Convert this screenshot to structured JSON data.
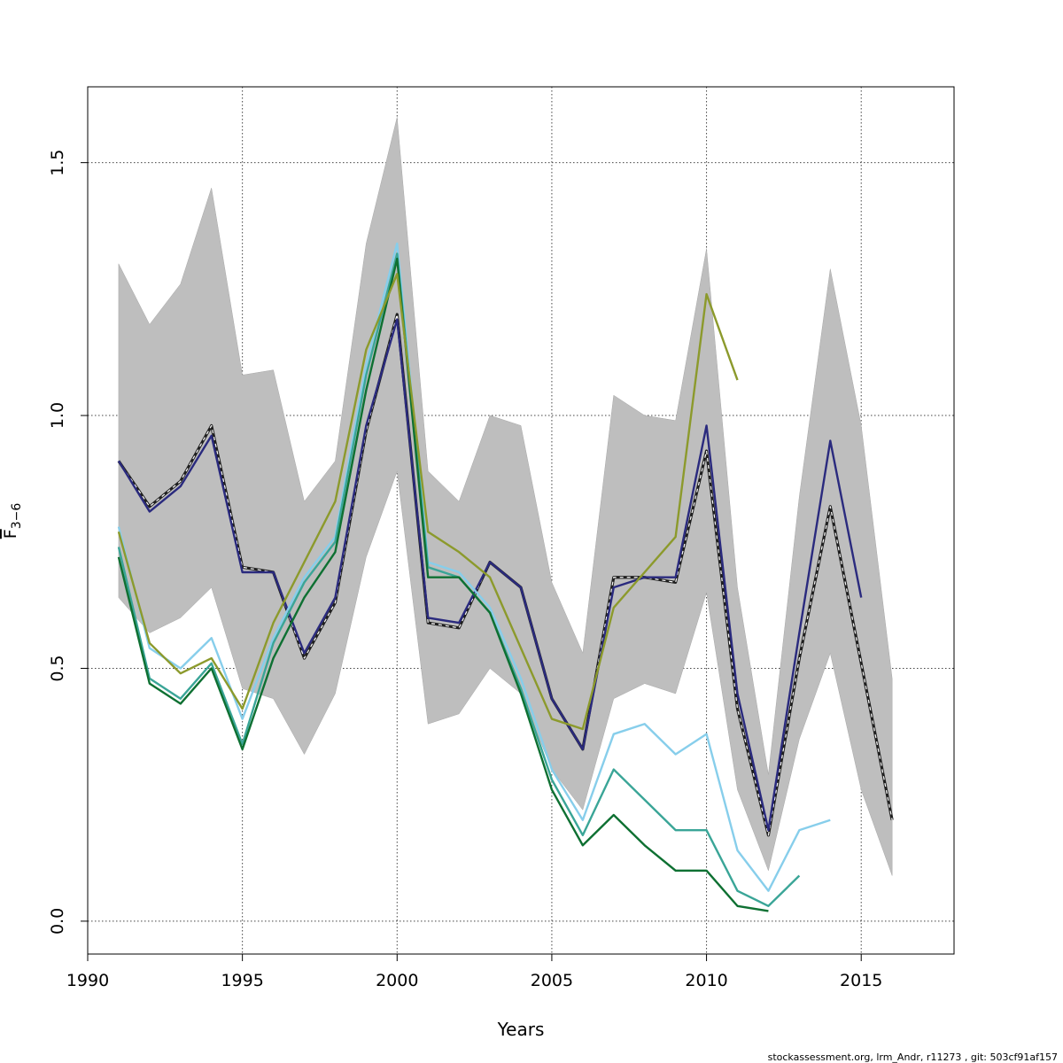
{
  "chart_data": {
    "type": "line",
    "title": "",
    "xlabel": "Years",
    "ylabel": {
      "main": "F",
      "subscript": "3−6"
    },
    "footer": "stockassessment.org, lrm_Andr, r11273 , git: 503cf91af157",
    "xlim": [
      1990,
      2018
    ],
    "ylim": [
      -0.065,
      1.65
    ],
    "x_ticks": [
      1990,
      1995,
      2000,
      2005,
      2010,
      2015
    ],
    "x_tick_labels": [
      "1990",
      "1995",
      "2000",
      "2005",
      "2010",
      "2015"
    ],
    "y_ticks": [
      0,
      0.5,
      1,
      1.5
    ],
    "y_tick_labels": [
      "0.0",
      "0.5",
      "1.0",
      "1.5"
    ],
    "grid": true,
    "confidence_band": {
      "x": [
        1991,
        1992,
        1993,
        1994,
        1995,
        1996,
        1997,
        1998,
        1999,
        2000,
        2001,
        2002,
        2003,
        2004,
        2005,
        2006,
        2007,
        2008,
        2009,
        2010,
        2011,
        2012,
        2013,
        2014,
        2015,
        2016
      ],
      "upper": [
        1.3,
        1.18,
        1.26,
        1.45,
        1.08,
        1.09,
        0.83,
        0.91,
        1.34,
        1.59,
        0.89,
        0.83,
        1.0,
        0.98,
        0.67,
        0.53,
        1.04,
        1.0,
        0.99,
        1.33,
        0.66,
        0.29,
        0.84,
        1.29,
        0.98,
        0.48
      ],
      "lower": [
        0.64,
        0.57,
        0.6,
        0.66,
        0.46,
        0.44,
        0.33,
        0.45,
        0.72,
        0.89,
        0.39,
        0.41,
        0.5,
        0.45,
        0.3,
        0.22,
        0.44,
        0.47,
        0.45,
        0.65,
        0.26,
        0.1,
        0.36,
        0.53,
        0.26,
        0.09
      ],
      "color": "#bebebe"
    },
    "series": [
      {
        "color": "#1f1f1f",
        "dashed": true,
        "x": [
          1991,
          1992,
          1993,
          1994,
          1995,
          1996,
          1997,
          1998,
          1999,
          2000,
          2001,
          2002,
          2003,
          2004,
          2005,
          2006,
          2007,
          2008,
          2009,
          2010,
          2011,
          2012,
          2013,
          2014,
          2015,
          2016
        ],
        "values": [
          0.91,
          0.82,
          0.87,
          0.98,
          0.7,
          0.69,
          0.52,
          0.63,
          0.97,
          1.2,
          0.59,
          0.58,
          0.71,
          0.66,
          0.44,
          0.34,
          0.68,
          0.68,
          0.67,
          0.93,
          0.42,
          0.17,
          0.52,
          0.82,
          0.51,
          0.2
        ]
      },
      {
        "color": "#2a2a7e",
        "dashed": false,
        "x": [
          1991,
          1992,
          1993,
          1994,
          1995,
          1996,
          1997,
          1998,
          1999,
          2000,
          2001,
          2002,
          2003,
          2004,
          2005,
          2006,
          2007,
          2008,
          2009,
          2010,
          2011,
          2012,
          2013,
          2014,
          2015
        ],
        "values": [
          0.91,
          0.81,
          0.86,
          0.96,
          0.69,
          0.69,
          0.53,
          0.64,
          0.98,
          1.19,
          0.6,
          0.59,
          0.71,
          0.66,
          0.44,
          0.34,
          0.66,
          0.68,
          0.68,
          0.98,
          0.45,
          0.18,
          0.57,
          0.95,
          0.64
        ]
      },
      {
        "color": "#87ceeb",
        "dashed": false,
        "x": [
          1991,
          1992,
          1993,
          1994,
          1995,
          1996,
          1997,
          1998,
          1999,
          2000,
          2001,
          2002,
          2003,
          2004,
          2005,
          2006,
          2007,
          2008,
          2009,
          2010,
          2011,
          2012,
          2013,
          2014
        ],
        "values": [
          0.78,
          0.54,
          0.5,
          0.56,
          0.4,
          0.56,
          0.68,
          0.76,
          1.1,
          1.34,
          0.71,
          0.69,
          0.62,
          0.48,
          0.3,
          0.2,
          0.37,
          0.39,
          0.33,
          0.37,
          0.14,
          0.06,
          0.18,
          0.2
        ]
      },
      {
        "color": "#3aa597",
        "dashed": false,
        "x": [
          1991,
          1992,
          1993,
          1994,
          1995,
          1996,
          1997,
          1998,
          1999,
          2000,
          2001,
          2002,
          2003,
          2004,
          2005,
          2006,
          2007,
          2008,
          2009,
          2010,
          2011,
          2012,
          2013
        ],
        "values": [
          0.74,
          0.48,
          0.44,
          0.51,
          0.35,
          0.55,
          0.67,
          0.75,
          1.08,
          1.32,
          0.7,
          0.68,
          0.61,
          0.46,
          0.28,
          0.17,
          0.3,
          0.24,
          0.18,
          0.18,
          0.06,
          0.03,
          0.09
        ]
      },
      {
        "color": "#0e7032",
        "dashed": false,
        "x": [
          1991,
          1992,
          1993,
          1994,
          1995,
          1996,
          1997,
          1998,
          1999,
          2000,
          2001,
          2002,
          2003,
          2004,
          2005,
          2006,
          2007,
          2008,
          2009,
          2010,
          2011,
          2012
        ],
        "values": [
          0.72,
          0.47,
          0.43,
          0.5,
          0.34,
          0.52,
          0.64,
          0.73,
          1.05,
          1.31,
          0.68,
          0.68,
          0.61,
          0.45,
          0.26,
          0.15,
          0.21,
          0.15,
          0.1,
          0.1,
          0.03,
          0.02
        ]
      },
      {
        "color": "#8c9a2c",
        "dashed": false,
        "x": [
          1991,
          1992,
          1993,
          1994,
          1995,
          1996,
          1997,
          1998,
          1999,
          2000,
          2001,
          2002,
          2003,
          2004,
          2005,
          2006,
          2007,
          2008,
          2009,
          2010,
          2011
        ],
        "values": [
          0.77,
          0.55,
          0.49,
          0.52,
          0.42,
          0.59,
          0.71,
          0.83,
          1.13,
          1.28,
          0.77,
          0.73,
          0.68,
          0.54,
          0.4,
          0.38,
          0.62,
          0.69,
          0.76,
          1.24,
          1.07
        ]
      }
    ]
  }
}
